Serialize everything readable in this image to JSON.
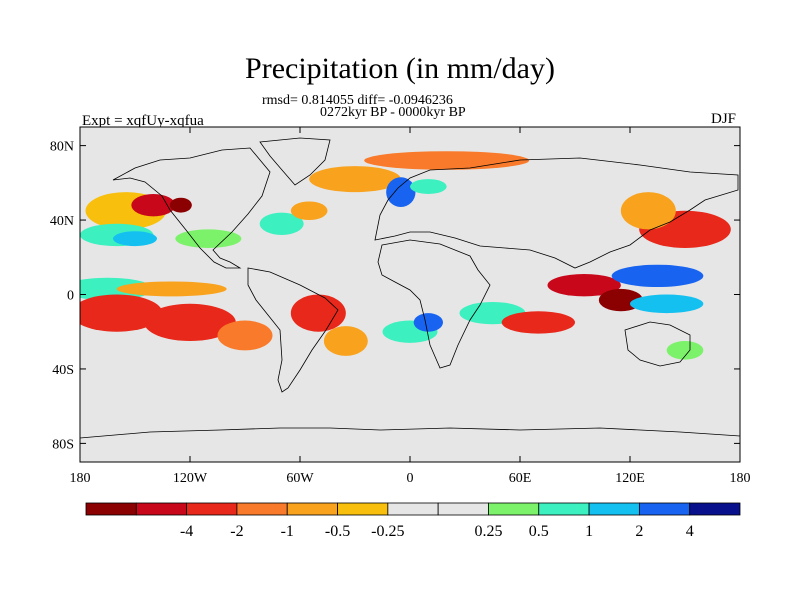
{
  "title": "Precipitation (in mm/day)",
  "stats_line": "rmsd= 0.814055 diff= -0.0946236",
  "period_line": "0272kyr BP - 0000kyr BP",
  "left_label": "Expt = xqfUy-xqfua",
  "right_label": "DJF",
  "lat_ticks": [
    {
      "label": "80N",
      "lat": 80
    },
    {
      "label": "40N",
      "lat": 40
    },
    {
      "label": "0",
      "lat": 0
    },
    {
      "label": "40S",
      "lat": -40
    },
    {
      "label": "80S",
      "lat": -80
    }
  ],
  "lon_ticks": [
    {
      "label": "180",
      "lon": -180
    },
    {
      "label": "120W",
      "lon": -120
    },
    {
      "label": "60W",
      "lon": -60
    },
    {
      "label": "0",
      "lon": 0
    },
    {
      "label": "60E",
      "lon": 60
    },
    {
      "label": "120E",
      "lon": 120
    },
    {
      "label": "180",
      "lon": 180
    }
  ],
  "colorbar": {
    "colors": [
      "#8b0000",
      "#c8081a",
      "#e8281a",
      "#f87a2a",
      "#f8a21e",
      "#f8c00c",
      "#e6e6e6",
      "#e6e6e6",
      "#7cf26a",
      "#3cf0c0",
      "#14c0f0",
      "#1864f0",
      "#08108c"
    ],
    "labels": [
      "-4",
      "-2",
      "-1",
      "-0.5",
      "-0.25",
      "0.25",
      "0.5",
      "1",
      "2",
      "4"
    ]
  },
  "blobs": [
    {
      "lon": -155,
      "lat": 45,
      "rx": 22,
      "ry": 10,
      "c": "#f8c00c"
    },
    {
      "lon": -140,
      "lat": 48,
      "rx": 12,
      "ry": 6,
      "c": "#c8081a"
    },
    {
      "lon": -125,
      "lat": 48,
      "rx": 6,
      "ry": 4,
      "c": "#8b0000"
    },
    {
      "lon": -160,
      "lat": 32,
      "rx": 20,
      "ry": 6,
      "c": "#3cf0c0"
    },
    {
      "lon": -150,
      "lat": 30,
      "rx": 12,
      "ry": 4,
      "c": "#14c0f0"
    },
    {
      "lon": -110,
      "lat": 30,
      "rx": 18,
      "ry": 5,
      "c": "#7cf26a"
    },
    {
      "lon": -70,
      "lat": 38,
      "rx": 12,
      "ry": 6,
      "c": "#3cf0c0"
    },
    {
      "lon": -55,
      "lat": 45,
      "rx": 10,
      "ry": 5,
      "c": "#f8a21e"
    },
    {
      "lon": -30,
      "lat": 62,
      "rx": 25,
      "ry": 7,
      "c": "#f8a21e"
    },
    {
      "lon": -5,
      "lat": 55,
      "rx": 8,
      "ry": 8,
      "c": "#1864f0"
    },
    {
      "lon": 10,
      "lat": 58,
      "rx": 10,
      "ry": 4,
      "c": "#3cf0c0"
    },
    {
      "lon": 20,
      "lat": 72,
      "rx": 45,
      "ry": 5,
      "c": "#f87a2a"
    },
    {
      "lon": -165,
      "lat": 3,
      "rx": 25,
      "ry": 6,
      "c": "#3cf0c0"
    },
    {
      "lon": -130,
      "lat": 3,
      "rx": 30,
      "ry": 4,
      "c": "#f8a21e"
    },
    {
      "lon": -160,
      "lat": -10,
      "rx": 25,
      "ry": 10,
      "c": "#e8281a"
    },
    {
      "lon": -120,
      "lat": -15,
      "rx": 25,
      "ry": 10,
      "c": "#e8281a"
    },
    {
      "lon": -90,
      "lat": -22,
      "rx": 15,
      "ry": 8,
      "c": "#f87a2a"
    },
    {
      "lon": -50,
      "lat": -10,
      "rx": 15,
      "ry": 10,
      "c": "#e8281a"
    },
    {
      "lon": -35,
      "lat": -25,
      "rx": 12,
      "ry": 8,
      "c": "#f8a21e"
    },
    {
      "lon": 0,
      "lat": -20,
      "rx": 15,
      "ry": 6,
      "c": "#3cf0c0"
    },
    {
      "lon": 10,
      "lat": -15,
      "rx": 8,
      "ry": 5,
      "c": "#1864f0"
    },
    {
      "lon": 45,
      "lat": -10,
      "rx": 18,
      "ry": 6,
      "c": "#3cf0c0"
    },
    {
      "lon": 70,
      "lat": -15,
      "rx": 20,
      "ry": 6,
      "c": "#e8281a"
    },
    {
      "lon": 95,
      "lat": 5,
      "rx": 20,
      "ry": 6,
      "c": "#c8081a"
    },
    {
      "lon": 115,
      "lat": -3,
      "rx": 12,
      "ry": 6,
      "c": "#8b0000"
    },
    {
      "lon": 135,
      "lat": 10,
      "rx": 25,
      "ry": 6,
      "c": "#1864f0"
    },
    {
      "lon": 140,
      "lat": -5,
      "rx": 20,
      "ry": 5,
      "c": "#14c0f0"
    },
    {
      "lon": 150,
      "lat": 35,
      "rx": 25,
      "ry": 10,
      "c": "#e8281a"
    },
    {
      "lon": 130,
      "lat": 45,
      "rx": 15,
      "ry": 10,
      "c": "#f8a21e"
    },
    {
      "lon": 150,
      "lat": -30,
      "rx": 10,
      "ry": 5,
      "c": "#7cf26a"
    }
  ]
}
